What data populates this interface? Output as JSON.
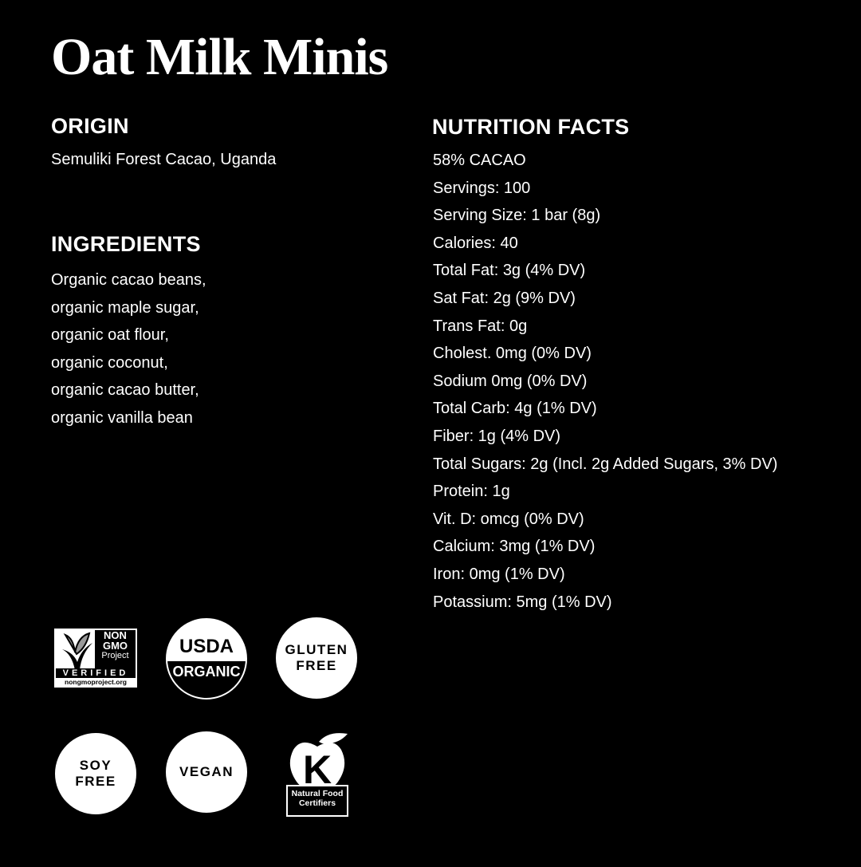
{
  "title": "Oat Milk Minis",
  "origin": {
    "heading": "ORIGIN",
    "text": "Semuliki Forest Cacao, Uganda"
  },
  "ingredients": {
    "heading": "INGREDIENTS",
    "lines": [
      "Organic cacao beans,",
      "organic maple sugar,",
      "organic oat flour,",
      "organic coconut,",
      "organic cacao butter,",
      "organic vanilla bean"
    ]
  },
  "nutrition": {
    "heading": "NUTRITION FACTS",
    "lines": [
      "58% CACAO",
      "Servings: 100",
      "Serving Size: 1 bar (8g)",
      "Calories: 40",
      "Total Fat: 3g (4% DV)",
      "Sat Fat: 2g (9% DV)",
      "Trans Fat: 0g",
      "Cholest. 0mg (0% DV)",
      "Sodium 0mg (0% DV)",
      "Total Carb: 4g (1% DV)",
      "Fiber: 1g (4% DV)",
      "Total Sugars: 2g (Incl. 2g Added Sugars, 3% DV)",
      "Protein: 1g",
      "Vit. D: omcg (0% DV)",
      "Calcium: 3mg (1% DV)",
      "Iron: 0mg (1% DV)",
      "Potassium: 5mg (1% DV)"
    ]
  },
  "badges": {
    "nongmo": {
      "l1": "NON",
      "l2": "GMO",
      "l3": "Project",
      "l4": "VERIFIED",
      "l5": "nongmoproject.org"
    },
    "usda": {
      "top": "USDA",
      "bottom": "ORGANIC"
    },
    "gluten": {
      "l1": "GLUTEN",
      "l2": "FREE"
    },
    "soy": {
      "l1": "SOY",
      "l2": "FREE"
    },
    "vegan": {
      "l1": "VEGAN"
    },
    "kosher": {
      "letter": "K",
      "l1": "Natural Food",
      "l2": "Certifiers"
    }
  }
}
